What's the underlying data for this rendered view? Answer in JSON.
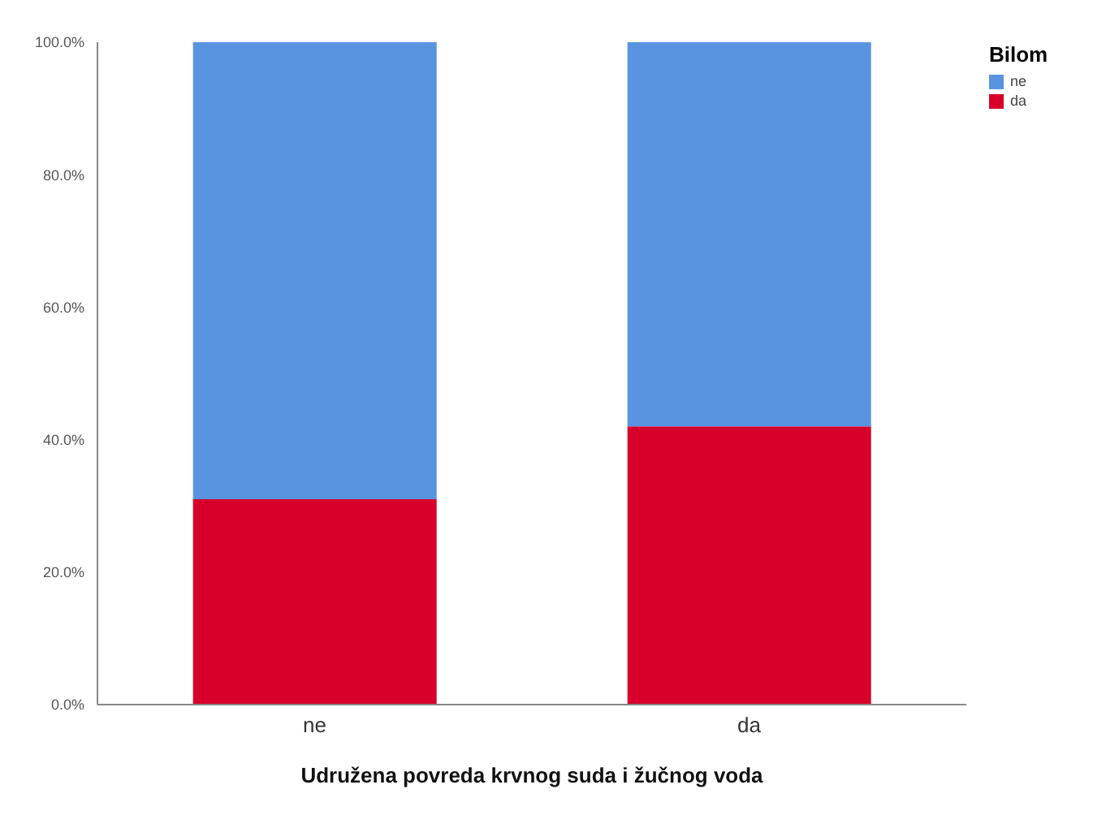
{
  "chart_data": {
    "type": "bar",
    "stacked": true,
    "xlabel": "Udružena povreda krvnog suda i žučnog voda",
    "legend_title": "Bilom",
    "legend": "top right",
    "categories": [
      "ne",
      "da"
    ],
    "series": [
      {
        "name": "da",
        "color": "#d6002b",
        "values": [
          31,
          42
        ]
      },
      {
        "name": "ne",
        "color": "#5894e0",
        "values": [
          69,
          58
        ]
      }
    ],
    "ylim": [
      0,
      100
    ],
    "yticks": [
      {
        "value": 0,
        "label": "0.0%"
      },
      {
        "value": 20,
        "label": "20.0%"
      },
      {
        "value": 40,
        "label": "40.0%"
      },
      {
        "value": 60,
        "label": "60.0%"
      },
      {
        "value": 80,
        "label": "80.0%"
      },
      {
        "value": 100,
        "label": "100.0%"
      }
    ]
  }
}
